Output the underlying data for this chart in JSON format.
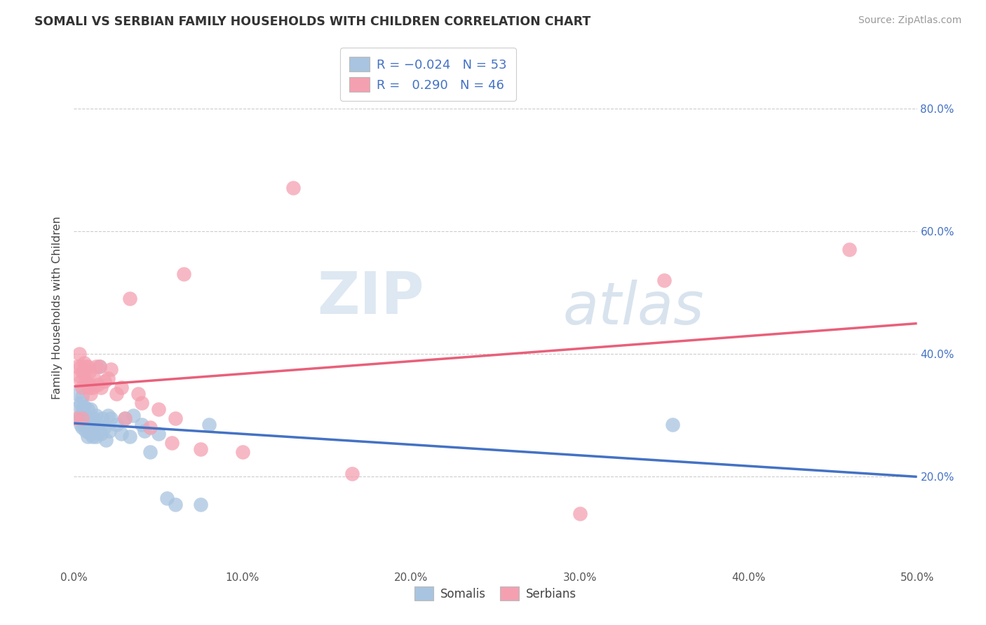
{
  "title": "SOMALI VS SERBIAN FAMILY HOUSEHOLDS WITH CHILDREN CORRELATION CHART",
  "source": "Source: ZipAtlas.com",
  "ylabel": "Family Households with Children",
  "xlim": [
    0.0,
    0.5
  ],
  "ylim": [
    0.05,
    0.9
  ],
  "xtick_labels": [
    "0.0%",
    "10.0%",
    "20.0%",
    "30.0%",
    "40.0%",
    "50.0%"
  ],
  "xtick_vals": [
    0.0,
    0.1,
    0.2,
    0.3,
    0.4,
    0.5
  ],
  "ytick_labels": [
    "20.0%",
    "40.0%",
    "60.0%",
    "80.0%"
  ],
  "ytick_vals": [
    0.2,
    0.4,
    0.6,
    0.8
  ],
  "somali_color": "#a8c4e0",
  "serbian_color": "#f4a0b0",
  "somali_line_color": "#4472c4",
  "serbian_line_color": "#e8607a",
  "somali_R": -0.024,
  "somali_N": 53,
  "serbian_R": 0.29,
  "serbian_N": 46,
  "legend_label_somali": "Somalis",
  "legend_label_serbian": "Serbians",
  "watermark_zip": "ZIP",
  "watermark_atlas": "atlas",
  "background_color": "#ffffff",
  "grid_color": "#cccccc",
  "right_tick_color": "#4472c4",
  "somali_x": [
    0.002,
    0.003,
    0.003,
    0.004,
    0.004,
    0.004,
    0.005,
    0.005,
    0.005,
    0.005,
    0.006,
    0.006,
    0.006,
    0.007,
    0.007,
    0.007,
    0.008,
    0.008,
    0.008,
    0.009,
    0.009,
    0.01,
    0.01,
    0.01,
    0.011,
    0.011,
    0.012,
    0.012,
    0.013,
    0.013,
    0.014,
    0.015,
    0.016,
    0.017,
    0.018,
    0.019,
    0.02,
    0.021,
    0.022,
    0.025,
    0.028,
    0.03,
    0.033,
    0.035,
    0.04,
    0.042,
    0.045,
    0.05,
    0.055,
    0.06,
    0.075,
    0.08,
    0.355
  ],
  "somali_y": [
    0.335,
    0.315,
    0.295,
    0.32,
    0.3,
    0.285,
    0.31,
    0.295,
    0.28,
    0.33,
    0.3,
    0.285,
    0.315,
    0.295,
    0.275,
    0.3,
    0.285,
    0.265,
    0.31,
    0.275,
    0.295,
    0.27,
    0.285,
    0.31,
    0.265,
    0.28,
    0.275,
    0.295,
    0.3,
    0.265,
    0.285,
    0.38,
    0.27,
    0.295,
    0.28,
    0.26,
    0.3,
    0.275,
    0.295,
    0.285,
    0.27,
    0.295,
    0.265,
    0.3,
    0.285,
    0.275,
    0.24,
    0.27,
    0.165,
    0.155,
    0.155,
    0.285,
    0.285
  ],
  "serbian_x": [
    0.001,
    0.002,
    0.003,
    0.003,
    0.004,
    0.004,
    0.005,
    0.005,
    0.005,
    0.006,
    0.006,
    0.007,
    0.007,
    0.008,
    0.008,
    0.009,
    0.009,
    0.01,
    0.01,
    0.011,
    0.012,
    0.013,
    0.014,
    0.015,
    0.016,
    0.018,
    0.02,
    0.022,
    0.025,
    0.028,
    0.03,
    0.033,
    0.038,
    0.04,
    0.045,
    0.05,
    0.058,
    0.06,
    0.065,
    0.075,
    0.1,
    0.13,
    0.165,
    0.3,
    0.46,
    0.35
  ],
  "serbian_y": [
    0.295,
    0.38,
    0.4,
    0.365,
    0.38,
    0.355,
    0.37,
    0.345,
    0.295,
    0.385,
    0.37,
    0.355,
    0.38,
    0.35,
    0.38,
    0.345,
    0.37,
    0.335,
    0.35,
    0.345,
    0.36,
    0.38,
    0.35,
    0.38,
    0.345,
    0.355,
    0.36,
    0.375,
    0.335,
    0.345,
    0.295,
    0.49,
    0.335,
    0.32,
    0.28,
    0.31,
    0.255,
    0.295,
    0.53,
    0.245,
    0.24,
    0.67,
    0.205,
    0.14,
    0.57,
    0.52
  ]
}
